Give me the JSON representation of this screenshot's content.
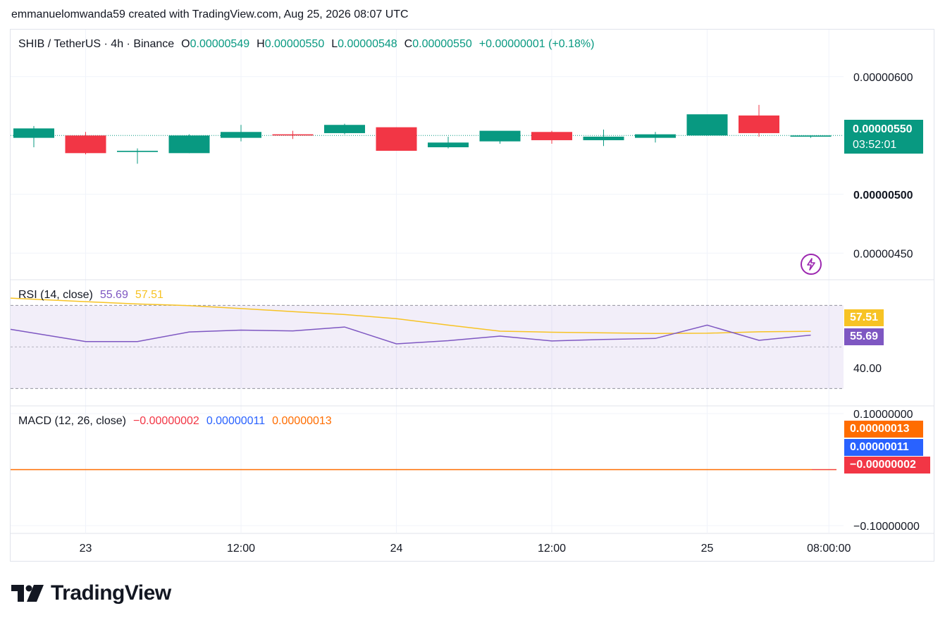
{
  "attribution": "emmanuelomwanda59 created with TradingView.com, Aug 25, 2026 08:07 UTC",
  "main_legend": {
    "symbol": "SHIB / TetherUS · 4h · Binance",
    "o_label": "O",
    "o_value": "0.00000549",
    "h_label": "H",
    "h_value": "0.00000550",
    "l_label": "L",
    "l_value": "0.00000548",
    "c_label": "C",
    "c_value": "0.00000550",
    "change": "+0.00000001 (+0.18%)"
  },
  "price_badge": {
    "price": "0.00000550",
    "countdown": "03:52:01"
  },
  "rsi_legend": {
    "name": "RSI (14, close)",
    "rsi_value": "55.69",
    "ma_value": "57.51"
  },
  "rsi_tags": {
    "ma": "57.51",
    "rsi": "55.69",
    "level": "40.00"
  },
  "macd_legend": {
    "name": "MACD (12, 26, close)",
    "histogram": "−0.00000002",
    "macd": "0.00000011",
    "signal": "0.00000013"
  },
  "macd_tags": {
    "signal": "0.00000013",
    "macd": "0.00000011",
    "histogram": "−0.00000002",
    "top": "0.10000000",
    "bottom": "−0.10000000"
  },
  "logo_text": "TradingView",
  "colors": {
    "up": "#089981",
    "down": "#f23645",
    "rsi": "#7e57c2",
    "rsi_ma": "#f7c324",
    "macd": "#2962ff",
    "signal": "#ff6d00",
    "rsi_band": "#7e57c2"
  },
  "chart_data": [
    {
      "type": "candlestick",
      "title": "SHIB / TetherUS · 4h · Binance",
      "x_ticks": [
        "23",
        "12:00",
        "24",
        "12:00",
        "25",
        "08:00:00"
      ],
      "y_ticks": [
        "0.00000600",
        "0.00000500",
        "0.00000450"
      ],
      "ylim": [
        4.28e-06,
        6.4e-06
      ],
      "candles": [
        {
          "o": 5.48e-06,
          "h": 5.58e-06,
          "l": 5.4e-06,
          "c": 5.56e-06
        },
        {
          "o": 5.5e-06,
          "h": 5.53e-06,
          "l": 5.34e-06,
          "c": 5.35e-06
        },
        {
          "o": 5.36e-06,
          "h": 5.39e-06,
          "l": 5.26e-06,
          "c": 5.37e-06
        },
        {
          "o": 5.35e-06,
          "h": 5.51e-06,
          "l": 5.35e-06,
          "c": 5.5e-06
        },
        {
          "o": 5.48e-06,
          "h": 5.59e-06,
          "l": 5.45e-06,
          "c": 5.53e-06
        },
        {
          "o": 5.51e-06,
          "h": 5.54e-06,
          "l": 5.47e-06,
          "c": 5.5e-06
        },
        {
          "o": 5.52e-06,
          "h": 5.6e-06,
          "l": 5.51e-06,
          "c": 5.59e-06
        },
        {
          "o": 5.57e-06,
          "h": 5.57e-06,
          "l": 5.37e-06,
          "c": 5.37e-06
        },
        {
          "o": 5.4e-06,
          "h": 5.49e-06,
          "l": 5.39e-06,
          "c": 5.44e-06
        },
        {
          "o": 5.45e-06,
          "h": 5.53e-06,
          "l": 5.43e-06,
          "c": 5.54e-06
        },
        {
          "o": 5.53e-06,
          "h": 5.54e-06,
          "l": 5.43e-06,
          "c": 5.46e-06
        },
        {
          "o": 5.46e-06,
          "h": 5.55e-06,
          "l": 5.41e-06,
          "c": 5.49e-06
        },
        {
          "o": 5.48e-06,
          "h": 5.53e-06,
          "l": 5.44e-06,
          "c": 5.51e-06
        },
        {
          "o": 5.5e-06,
          "h": 5.67e-06,
          "l": 5.5e-06,
          "c": 5.68e-06
        },
        {
          "o": 5.67e-06,
          "h": 5.76e-06,
          "l": 5.49e-06,
          "c": 5.52e-06
        },
        {
          "o": 5.49e-06,
          "h": 5.5e-06,
          "l": 5.48e-06,
          "c": 5.5e-06
        }
      ]
    },
    {
      "type": "line",
      "title": "RSI (14, close)",
      "y_ticks": [
        "40.00"
      ],
      "bands": [
        70,
        30
      ],
      "middle": 50,
      "ylim": [
        22,
        82
      ],
      "series": [
        {
          "name": "RSI",
          "values": [
            58.5,
            52.6,
            52.6,
            57.2,
            58.1,
            57.7,
            59.6,
            51.5,
            53.0,
            55.2,
            52.9,
            53.6,
            54.1,
            60.5,
            53.2,
            55.69
          ]
        },
        {
          "name": "RSI MA",
          "values": [
            73.5,
            71.8,
            70.7,
            69.9,
            68.5,
            67.0,
            65.6,
            63.6,
            60.5,
            57.6,
            57.1,
            56.8,
            56.5,
            56.6,
            57.3,
            57.51
          ]
        }
      ]
    },
    {
      "type": "line",
      "title": "MACD (12, 26, close)",
      "y_ticks": [
        "0.10000000",
        "−0.10000000"
      ],
      "ylim": [
        -0.1,
        0.1
      ],
      "series": [
        {
          "name": "MACD",
          "value": 1.1e-07
        },
        {
          "name": "Signal",
          "value": 1.3e-07
        },
        {
          "name": "Histogram",
          "value": -2e-08
        }
      ]
    }
  ]
}
